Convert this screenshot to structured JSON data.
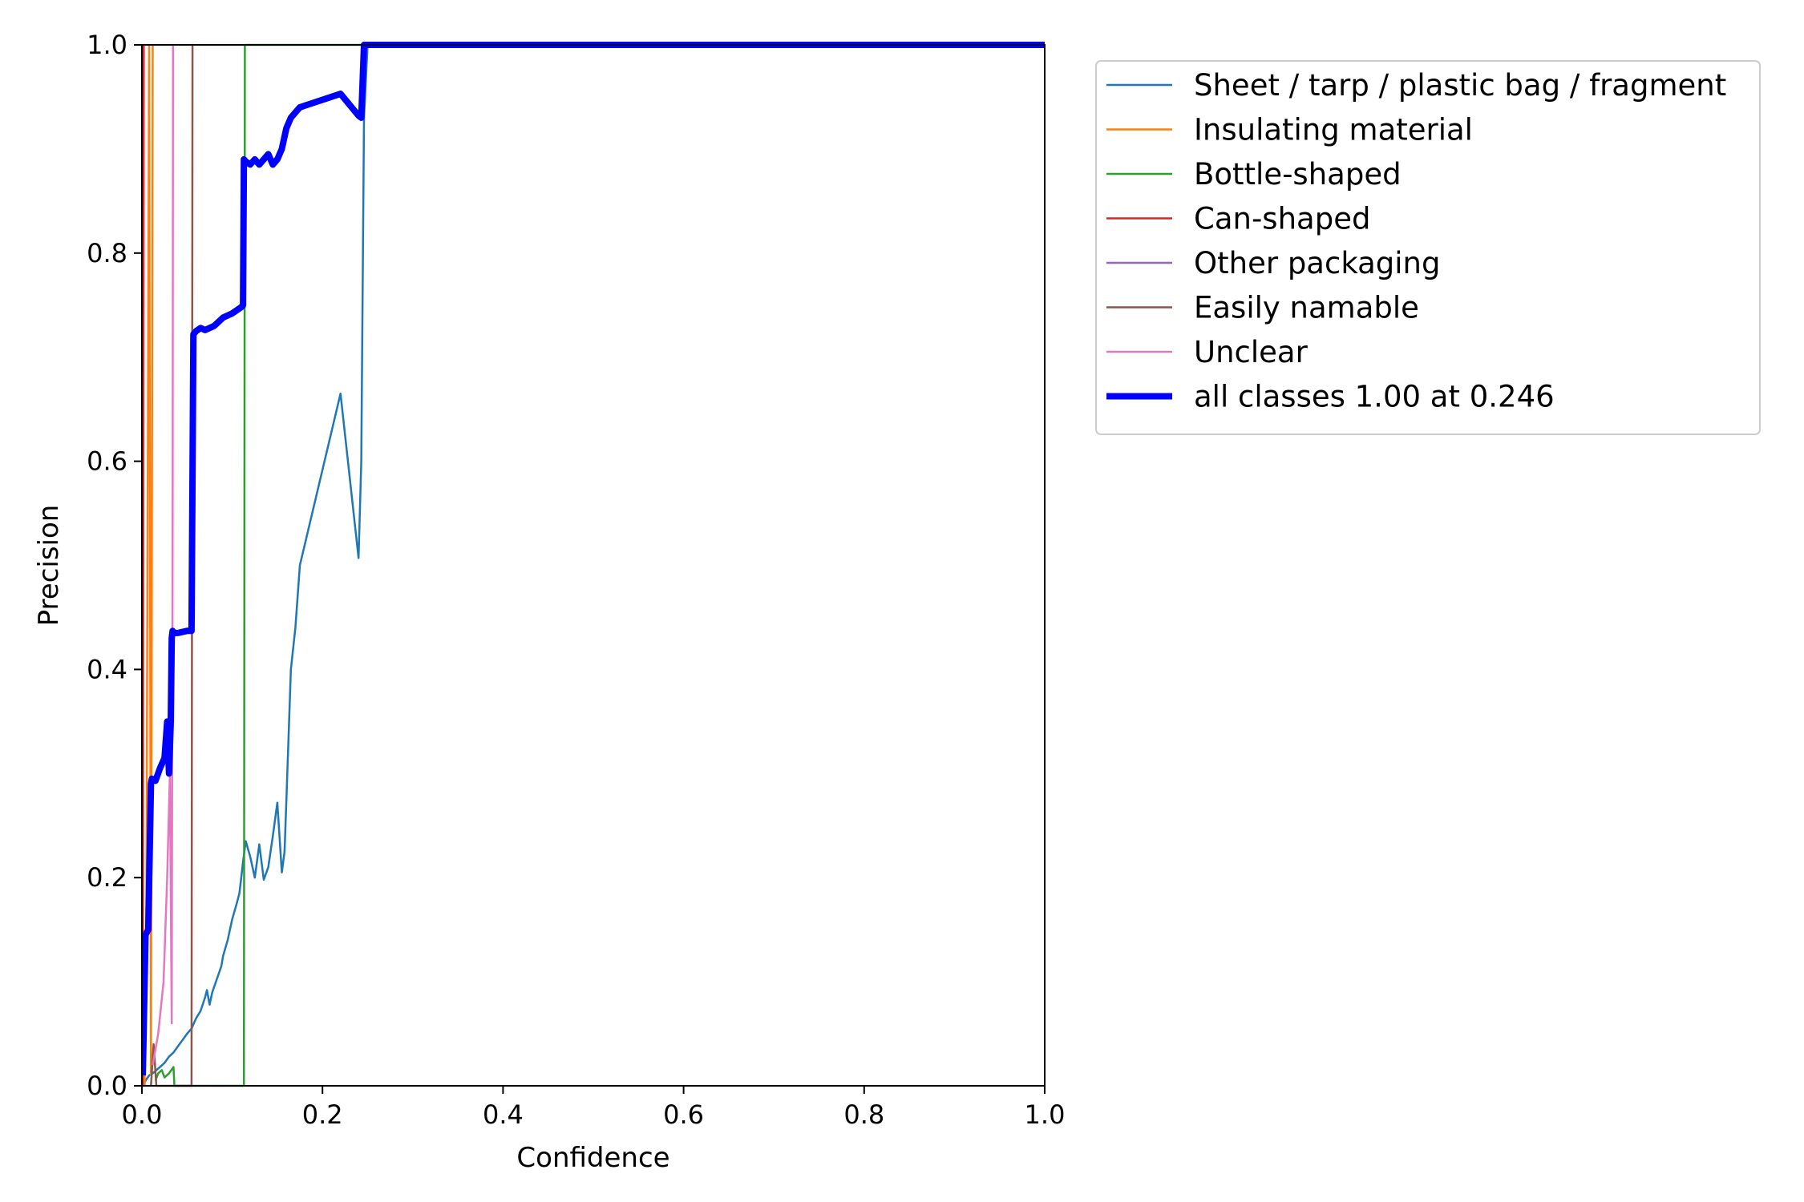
{
  "chart_data": {
    "type": "line",
    "title": "",
    "xlabel": "Confidence",
    "ylabel": "Precision",
    "xlim": [
      0,
      1
    ],
    "ylim": [
      0,
      1
    ],
    "xticks": [
      "0.0",
      "0.2",
      "0.4",
      "0.6",
      "0.8",
      "1.0"
    ],
    "yticks": [
      "0.0",
      "0.2",
      "0.4",
      "0.6",
      "0.8",
      "1.0"
    ],
    "grid": false,
    "legend_position": "outside-right-top",
    "series": [
      {
        "name": "Sheet / tarp / plastic bag / fragment",
        "color": "#1f77b4",
        "width": "thin",
        "x": [
          0,
          0.004,
          0.008,
          0.012,
          0.016,
          0.02,
          0.025,
          0.03,
          0.035,
          0.04,
          0.045,
          0.05,
          0.055,
          0.06,
          0.065,
          0.07,
          0.072,
          0.075,
          0.078,
          0.082,
          0.088,
          0.09,
          0.095,
          0.1,
          0.105,
          0.108,
          0.11,
          0.112,
          0.115,
          0.12,
          0.125,
          0.13,
          0.135,
          0.14,
          0.145,
          0.15,
          0.155,
          0.158,
          0.16,
          0.165,
          0.17,
          0.175,
          0.22,
          0.24,
          0.243,
          0.246,
          0.25,
          1.0
        ],
        "y": [
          0,
          0.005,
          0.01,
          0.012,
          0.015,
          0.018,
          0.022,
          0.028,
          0.032,
          0.038,
          0.044,
          0.05,
          0.055,
          0.065,
          0.072,
          0.085,
          0.092,
          0.078,
          0.09,
          0.1,
          0.115,
          0.125,
          0.14,
          0.16,
          0.175,
          0.185,
          0.2,
          0.215,
          0.235,
          0.22,
          0.2,
          0.232,
          0.198,
          0.21,
          0.24,
          0.272,
          0.205,
          0.225,
          0.275,
          0.4,
          0.44,
          0.5,
          0.665,
          0.507,
          0.6,
          0.93,
          1.0,
          1.0
        ]
      },
      {
        "name": "Insulating material",
        "color": "#ff7f0e",
        "width": "thin",
        "x": [
          0.003,
          0.005,
          0.008,
          0.01,
          0.012
        ],
        "y": [
          0,
          0.18,
          1.0,
          0.01,
          1.0
        ]
      },
      {
        "name": "Bottle-shaped",
        "color": "#2ca02c",
        "width": "thin",
        "x": [
          0.015,
          0.018,
          0.022,
          0.025,
          0.03,
          0.035,
          0.036,
          0.04,
          0.08,
          0.113,
          0.114,
          1.0
        ],
        "y": [
          0.005,
          0.012,
          0.015,
          0.008,
          0.012,
          0.018,
          0,
          0,
          0,
          0,
          1.0,
          1.0
        ]
      },
      {
        "name": "Can-shaped",
        "color": "#d62728",
        "width": "thin",
        "x": [
          0.001,
          0.002,
          0.003
        ],
        "y": [
          0,
          1.0,
          1.0
        ]
      },
      {
        "name": "Other packaging",
        "color": "#9467bd",
        "width": "thin",
        "x": [
          0,
          0.003
        ],
        "y": [
          0,
          0
        ]
      },
      {
        "name": "Easily namable",
        "color": "#8c564b",
        "width": "thin",
        "x": [
          0.01,
          0.013,
          0.016,
          0.02,
          0.03,
          0.055,
          0.056,
          0.057
        ],
        "y": [
          0,
          0.04,
          0,
          0,
          0,
          0,
          1.0,
          1.0
        ]
      },
      {
        "name": "Unclear",
        "color": "#e377c2",
        "width": "thin",
        "x": [
          0.012,
          0.018,
          0.024,
          0.028,
          0.031,
          0.033,
          0.034,
          0.0345
        ],
        "y": [
          0.02,
          0.05,
          0.1,
          0.2,
          0.3,
          0.06,
          0.55,
          1.0
        ]
      },
      {
        "name": "all classes 1.00 at 0.246",
        "color": "#0000ff",
        "width": "thick",
        "x": [
          0.001,
          0.004,
          0.007,
          0.01,
          0.011,
          0.015,
          0.02,
          0.025,
          0.028,
          0.03,
          0.032,
          0.033,
          0.034,
          0.035,
          0.04,
          0.05,
          0.055,
          0.057,
          0.06,
          0.065,
          0.07,
          0.08,
          0.09,
          0.1,
          0.11,
          0.112,
          0.113,
          0.115,
          0.12,
          0.125,
          0.13,
          0.135,
          0.14,
          0.145,
          0.15,
          0.155,
          0.16,
          0.165,
          0.17,
          0.175,
          0.22,
          0.24,
          0.243,
          0.246,
          1.0
        ],
        "y": [
          0.01,
          0.145,
          0.15,
          0.29,
          0.295,
          0.293,
          0.305,
          0.315,
          0.35,
          0.3,
          0.35,
          0.43,
          0.437,
          0.435,
          0.435,
          0.437,
          0.437,
          0.722,
          0.725,
          0.728,
          0.726,
          0.73,
          0.738,
          0.742,
          0.748,
          0.75,
          0.89,
          0.888,
          0.885,
          0.89,
          0.885,
          0.89,
          0.895,
          0.885,
          0.89,
          0.9,
          0.92,
          0.93,
          0.935,
          0.94,
          0.953,
          0.932,
          0.93,
          1.0,
          1.0
        ]
      }
    ]
  }
}
